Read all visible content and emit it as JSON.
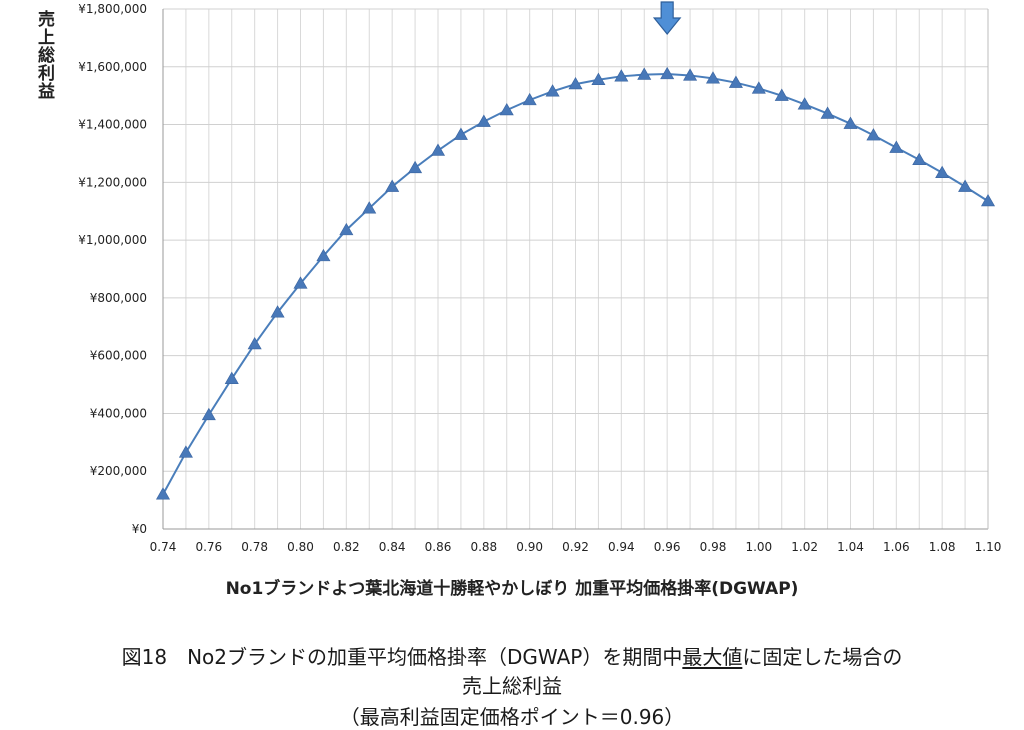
{
  "chart_data": {
    "type": "line",
    "ylabel": "売上総利益",
    "xlabel": "No1ブランドよつ葉北海道十勝軽やかしぼり 加重平均価格掛率(DGWAP)",
    "ylim": [
      0,
      1800000
    ],
    "xlim": [
      0.74,
      1.1
    ],
    "y_ticks": [
      "¥0",
      "¥200,000",
      "¥400,000",
      "¥600,000",
      "¥800,000",
      "¥1,000,000",
      "¥1,200,000",
      "¥1,400,000",
      "¥1,600,000",
      "¥1,800,000"
    ],
    "x_ticks": [
      "0.74",
      "0.76",
      "0.78",
      "0.80",
      "0.82",
      "0.84",
      "0.86",
      "0.88",
      "0.90",
      "0.92",
      "0.94",
      "0.96",
      "0.98",
      "1.00",
      "1.02",
      "1.04",
      "1.06",
      "1.08",
      "1.10"
    ],
    "grid": true,
    "marker": "triangle",
    "series_color": "#4a7ebb",
    "highlight_marker": "down-arrow",
    "highlight_x": 0.96,
    "series": [
      {
        "x": [
          0.74,
          0.75,
          0.76,
          0.77,
          0.78,
          0.79,
          0.8,
          0.81,
          0.82,
          0.83,
          0.84,
          0.85,
          0.86,
          0.87,
          0.88,
          0.89,
          0.9,
          0.91,
          0.92,
          0.93,
          0.94,
          0.95,
          0.96,
          0.97,
          0.98,
          0.99,
          1.0,
          1.01,
          1.02,
          1.03,
          1.04,
          1.05,
          1.06,
          1.07,
          1.08,
          1.09,
          1.1
        ],
        "values": [
          120000,
          265000,
          395000,
          520000,
          640000,
          750000,
          850000,
          945000,
          1035000,
          1110000,
          1185000,
          1250000,
          1310000,
          1365000,
          1410000,
          1450000,
          1485000,
          1515000,
          1540000,
          1555000,
          1567000,
          1573000,
          1575000,
          1570000,
          1560000,
          1545000,
          1525000,
          1500000,
          1470000,
          1438000,
          1403000,
          1363000,
          1320000,
          1278000,
          1233000,
          1185000,
          1135000
        ]
      }
    ]
  },
  "caption": {
    "line1_pre": "図18　No2ブランドの加重平均価格掛率（DGWAP）を期間中",
    "line1_underlined": "最大値",
    "line1_post": "に固定した場合の",
    "line2": "売上総利益",
    "line3": "（最高利益固定価格ポイント＝0.96）"
  }
}
